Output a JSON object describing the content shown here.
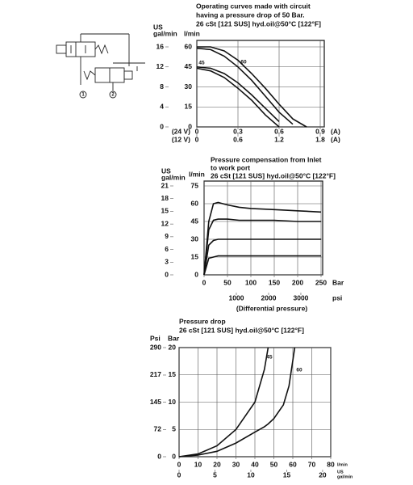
{
  "schematic": {
    "ports": [
      "1",
      "2"
    ]
  },
  "chart_data": [
    {
      "type": "line",
      "title": [
        "Operating curves made with circuit",
        "having a pressure drop of 50 Bar.",
        "26 cSt [121 SUS] hyd.oil@50°C [122°F]"
      ],
      "y2label": [
        "US",
        "gal/min"
      ],
      "ylabel": "l/min",
      "xlabel": "(24 V)",
      "x2label": "(12 V)",
      "x_unit": "(A)",
      "x2_unit": "(A)",
      "x": [
        0,
        0.1,
        0.2,
        0.3,
        0.4,
        0.5,
        0.6,
        0.7,
        0.8
      ],
      "series": [
        {
          "name": "60",
          "color": "#111111",
          "values": [
            60,
            60,
            57,
            50,
            40,
            29,
            17,
            6,
            0
          ]
        },
        {
          "color": "#111111",
          "values": [
            59,
            58,
            53,
            45,
            35,
            23,
            11,
            2,
            null
          ]
        },
        {
          "name": "45",
          "color": "#111111",
          "values": [
            45,
            44,
            40,
            33,
            24,
            14,
            4,
            null,
            null
          ]
        },
        {
          "color": "#111111",
          "values": [
            44,
            42,
            37,
            29,
            20,
            9,
            0,
            null,
            null
          ]
        }
      ],
      "xlim": [
        0,
        0.9
      ],
      "xticks": [
        0,
        0.3,
        0.6,
        0.9
      ],
      "x2lim": [
        0,
        1.8
      ],
      "x2ticks": [
        0,
        0.6,
        1.2,
        1.8
      ],
      "ylim": [
        0,
        60
      ],
      "yticks": [
        0,
        15,
        30,
        45,
        60
      ],
      "y2lim": [
        0,
        16
      ],
      "y2ticks": [
        0,
        4,
        8,
        12,
        16
      ],
      "grid": true
    },
    {
      "type": "line",
      "title": [
        "Pressure compensation from Inlet",
        "to work port",
        "26 cSt [121 SUS] hyd.oil@50°C [122°F]"
      ],
      "y2label": [
        "US",
        "gal/min"
      ],
      "ylabel": "l/min",
      "xlabel": "Bar",
      "x2label": "psi",
      "x_caption": "(Differential pressure)",
      "x": [
        0,
        10,
        20,
        30,
        50,
        75,
        100,
        150,
        200,
        250
      ],
      "series": [
        {
          "color": "#111111",
          "values": [
            0,
            45,
            60,
            61,
            59,
            57,
            56,
            55,
            54,
            53
          ]
        },
        {
          "color": "#111111",
          "values": [
            0,
            38,
            46,
            47,
            47,
            46,
            46,
            46,
            45,
            45
          ]
        },
        {
          "color": "#111111",
          "values": [
            0,
            25,
            29,
            30,
            30,
            30,
            30,
            30,
            30,
            30
          ]
        },
        {
          "color": "#111111",
          "values": [
            0,
            14,
            15,
            16,
            16,
            16,
            16,
            16,
            16,
            16
          ]
        }
      ],
      "xlim": [
        0,
        250
      ],
      "xticks": [
        0,
        50,
        100,
        150,
        200,
        250
      ],
      "x2lim": [
        0,
        3626
      ],
      "x2ticks": [
        1000,
        2000,
        3000
      ],
      "ylim": [
        0,
        75
      ],
      "yticks": [
        0,
        15,
        30,
        45,
        60,
        75
      ],
      "y2lim": [
        0,
        21
      ],
      "y2ticks": [
        0,
        3,
        6,
        9,
        12,
        15,
        18,
        21
      ],
      "grid": true
    },
    {
      "type": "line",
      "title": [
        "Pressure drop",
        "26 cSt [121 SUS] hyd.oil@50°C [122°F]"
      ],
      "y2label": "Psi",
      "ylabel": "Bar",
      "xlabel": "l/min",
      "x2label": [
        "US",
        "gal/min"
      ],
      "x": [
        0,
        10,
        20,
        30,
        40,
        45,
        47,
        50,
        55,
        58,
        61
      ],
      "series": [
        {
          "name": "45",
          "color": "#111111",
          "values": [
            0,
            0.5,
            2,
            5,
            10,
            16,
            20,
            null,
            null,
            null,
            null
          ]
        },
        {
          "name": "60",
          "color": "#111111",
          "values": [
            0,
            0.3,
            1,
            2.5,
            4.5,
            5.5,
            6,
            7,
            9.5,
            13,
            20
          ]
        }
      ],
      "xlim": [
        0,
        80
      ],
      "xticks": [
        0,
        10,
        20,
        30,
        40,
        50,
        60,
        70,
        80
      ],
      "x2lim": [
        0,
        21.13
      ],
      "x2ticks": [
        0,
        5,
        10,
        15,
        20
      ],
      "ylim": [
        0,
        20
      ],
      "yticks": [
        0,
        5,
        10,
        15,
        20
      ],
      "y2lim": [
        0,
        290
      ],
      "y2ticks": [
        0,
        72,
        145,
        217,
        290
      ],
      "grid": true
    }
  ]
}
